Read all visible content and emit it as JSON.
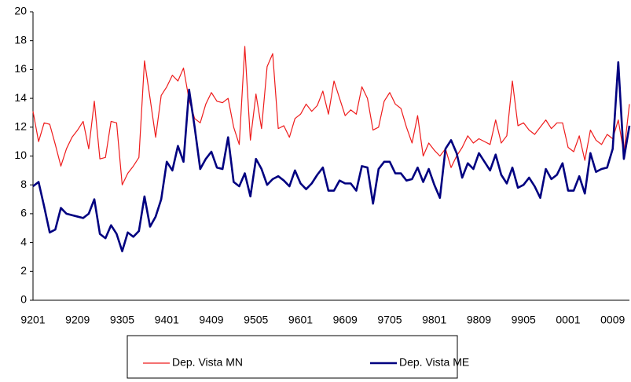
{
  "chart_data": {
    "type": "line",
    "categories": [
      "9201",
      null,
      null,
      null,
      null,
      null,
      null,
      null,
      "9209",
      null,
      null,
      null,
      null,
      null,
      null,
      null,
      "9305",
      null,
      null,
      null,
      null,
      null,
      null,
      null,
      "9401",
      null,
      null,
      null,
      null,
      null,
      null,
      null,
      "9409",
      null,
      null,
      null,
      null,
      null,
      null,
      null,
      "9505",
      null,
      null,
      null,
      null,
      null,
      null,
      null,
      "9601",
      null,
      null,
      null,
      null,
      null,
      null,
      null,
      "9609",
      null,
      null,
      null,
      null,
      null,
      null,
      null,
      "9705",
      null,
      null,
      null,
      null,
      null,
      null,
      null,
      "9801",
      null,
      null,
      null,
      null,
      null,
      null,
      null,
      "9809",
      null,
      null,
      null,
      null,
      null,
      null,
      null,
      "9905",
      null,
      null,
      null,
      null,
      null,
      null,
      null,
      "0001",
      null,
      null,
      null,
      null,
      null,
      null,
      null,
      "0009",
      null,
      null,
      null
    ],
    "series": [
      {
        "name": "Dep. Vista MN",
        "color": "#ee1c1c",
        "width": 1.2,
        "values": [
          13.1,
          11.0,
          12.3,
          12.2,
          10.8,
          9.3,
          10.5,
          11.3,
          11.8,
          12.4,
          10.5,
          13.8,
          9.8,
          9.9,
          12.4,
          12.3,
          8.0,
          8.8,
          9.3,
          9.9,
          16.6,
          14.0,
          11.3,
          14.2,
          14.8,
          15.6,
          15.2,
          16.1,
          13.9,
          12.6,
          12.3,
          13.6,
          14.4,
          13.8,
          13.7,
          14.0,
          12.0,
          10.8,
          17.6,
          11.1,
          14.3,
          11.9,
          16.2,
          17.1,
          11.9,
          12.1,
          11.3,
          12.6,
          12.9,
          13.6,
          13.1,
          13.5,
          14.5,
          12.9,
          15.2,
          14.0,
          12.8,
          13.2,
          12.9,
          14.8,
          14.0,
          11.8,
          12.0,
          13.8,
          14.4,
          13.6,
          13.3,
          12.0,
          10.9,
          12.8,
          10.0,
          10.9,
          10.4,
          10.0,
          10.5,
          9.2,
          10.0,
          10.6,
          11.4,
          10.9,
          11.2,
          11.0,
          10.8,
          12.5,
          10.9,
          11.4,
          15.2,
          12.1,
          12.3,
          11.8,
          11.5,
          12.0,
          12.5,
          11.9,
          12.3,
          12.3,
          10.6,
          10.3,
          11.4,
          9.7,
          11.8,
          11.1,
          10.8,
          11.5,
          11.2,
          12.5,
          10.2,
          13.6
        ]
      },
      {
        "name": "Dep. Vista ME",
        "color": "#000080",
        "width": 2.6,
        "values": [
          7.9,
          8.2,
          6.5,
          4.7,
          4.9,
          6.4,
          6.0,
          5.9,
          5.8,
          5.7,
          6.0,
          7.0,
          4.6,
          4.3,
          5.2,
          4.6,
          3.4,
          4.7,
          4.4,
          4.8,
          7.2,
          5.1,
          5.8,
          7.0,
          9.6,
          9.0,
          10.7,
          9.6,
          14.6,
          12.0,
          9.1,
          9.8,
          10.3,
          9.2,
          9.1,
          11.3,
          8.2,
          7.9,
          8.8,
          7.2,
          9.8,
          9.1,
          8.0,
          8.4,
          8.6,
          8.3,
          7.9,
          9.0,
          8.1,
          7.7,
          8.1,
          8.7,
          9.2,
          7.6,
          7.6,
          8.3,
          8.1,
          8.1,
          7.6,
          9.3,
          9.2,
          6.7,
          9.1,
          9.6,
          9.6,
          8.8,
          8.8,
          8.3,
          8.4,
          9.2,
          8.2,
          9.1,
          8.0,
          7.1,
          10.5,
          11.1,
          10.2,
          8.5,
          9.5,
          9.1,
          10.2,
          9.6,
          9.0,
          10.1,
          8.7,
          8.1,
          9.2,
          7.8,
          8.0,
          8.5,
          7.9,
          7.1,
          9.1,
          8.4,
          8.7,
          9.5,
          7.6,
          7.6,
          8.6,
          7.4,
          10.2,
          8.9,
          9.1,
          9.2,
          10.5,
          16.5,
          9.8,
          12.1
        ]
      }
    ],
    "ylim": [
      0,
      20
    ],
    "yticks": [
      0,
      2,
      4,
      6,
      8,
      10,
      12,
      14,
      16,
      18,
      20
    ],
    "grid": false,
    "legend": "bottom"
  }
}
